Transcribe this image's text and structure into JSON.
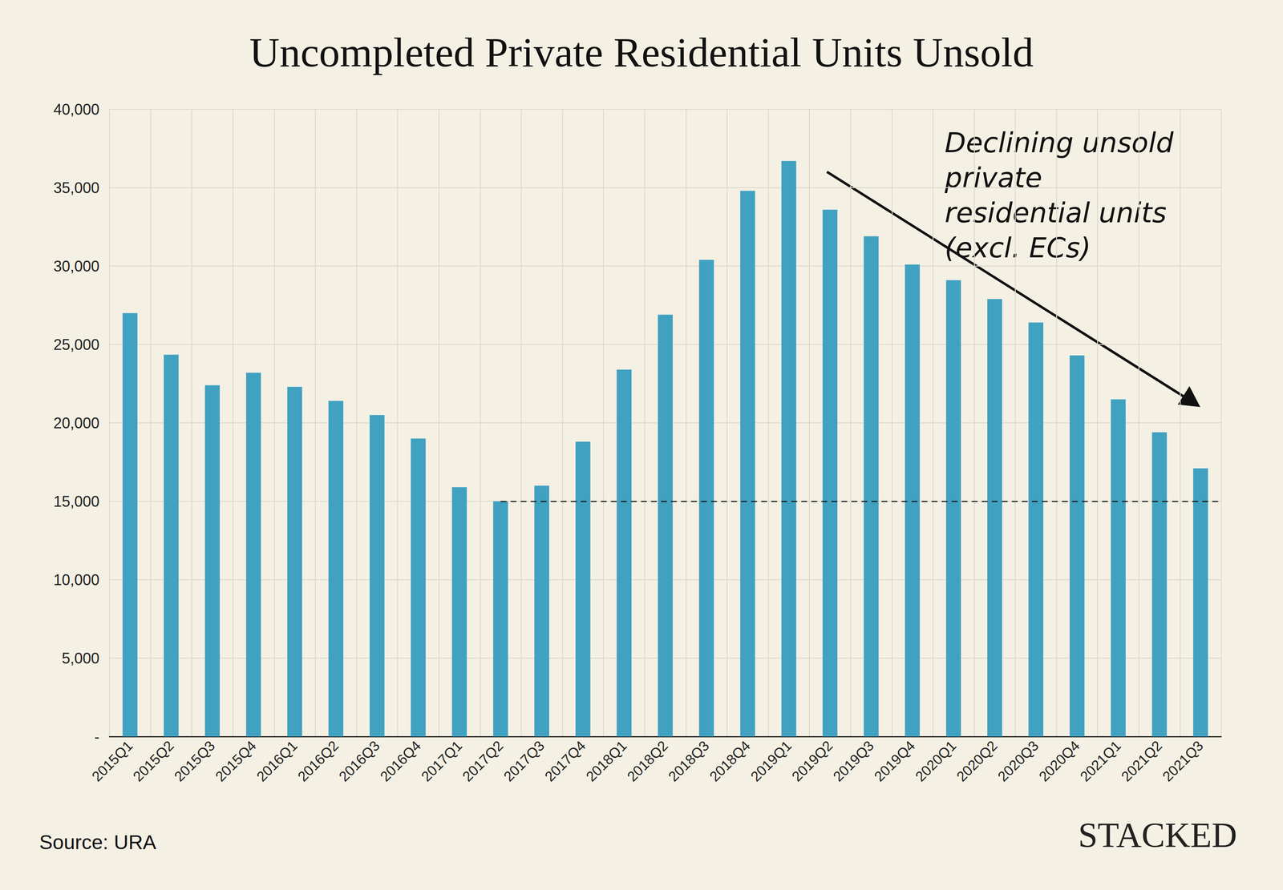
{
  "chart_data": {
    "type": "bar",
    "title": "Uncompleted Private Residential Units Unsold",
    "categories": [
      "2015Q1",
      "2015Q2",
      "2015Q3",
      "2015Q4",
      "2016Q1",
      "2016Q2",
      "2016Q3",
      "2016Q4",
      "2017Q1",
      "2017Q2",
      "2017Q3",
      "2017Q4",
      "2018Q1",
      "2018Q2",
      "2018Q3",
      "2018Q4",
      "2019Q1",
      "2019Q2",
      "2019Q3",
      "2019Q4",
      "2020Q1",
      "2020Q2",
      "2020Q3",
      "2020Q4",
      "2021Q1",
      "2021Q2",
      "2021Q3"
    ],
    "values": [
      27000,
      24350,
      22400,
      23200,
      22300,
      21400,
      20500,
      19000,
      15900,
      15000,
      16000,
      18800,
      23400,
      26900,
      30400,
      34800,
      36700,
      33600,
      31900,
      30100,
      29100,
      27900,
      26400,
      24300,
      21500,
      19400,
      17100
    ],
    "color": "#41a1c1",
    "ylim": [
      0,
      40000
    ],
    "yticks": [
      {
        "value": 0,
        "label": "-"
      },
      {
        "value": 5000,
        "label": "5,000"
      },
      {
        "value": 10000,
        "label": "10,000"
      },
      {
        "value": 15000,
        "label": "15,000"
      },
      {
        "value": 20000,
        "label": "20,000"
      },
      {
        "value": 25000,
        "label": "25,000"
      },
      {
        "value": 30000,
        "label": "30,000"
      },
      {
        "value": 35000,
        "label": "35,000"
      },
      {
        "value": 40000,
        "label": "40,000"
      }
    ],
    "grid": true,
    "annotation": "Declining unsold private residential units (excl. ECs)",
    "reference_line": {
      "value": 15000,
      "from": "2017Q2",
      "to": "2021Q3"
    },
    "source": "Source: URA",
    "brand": "STACKED"
  }
}
